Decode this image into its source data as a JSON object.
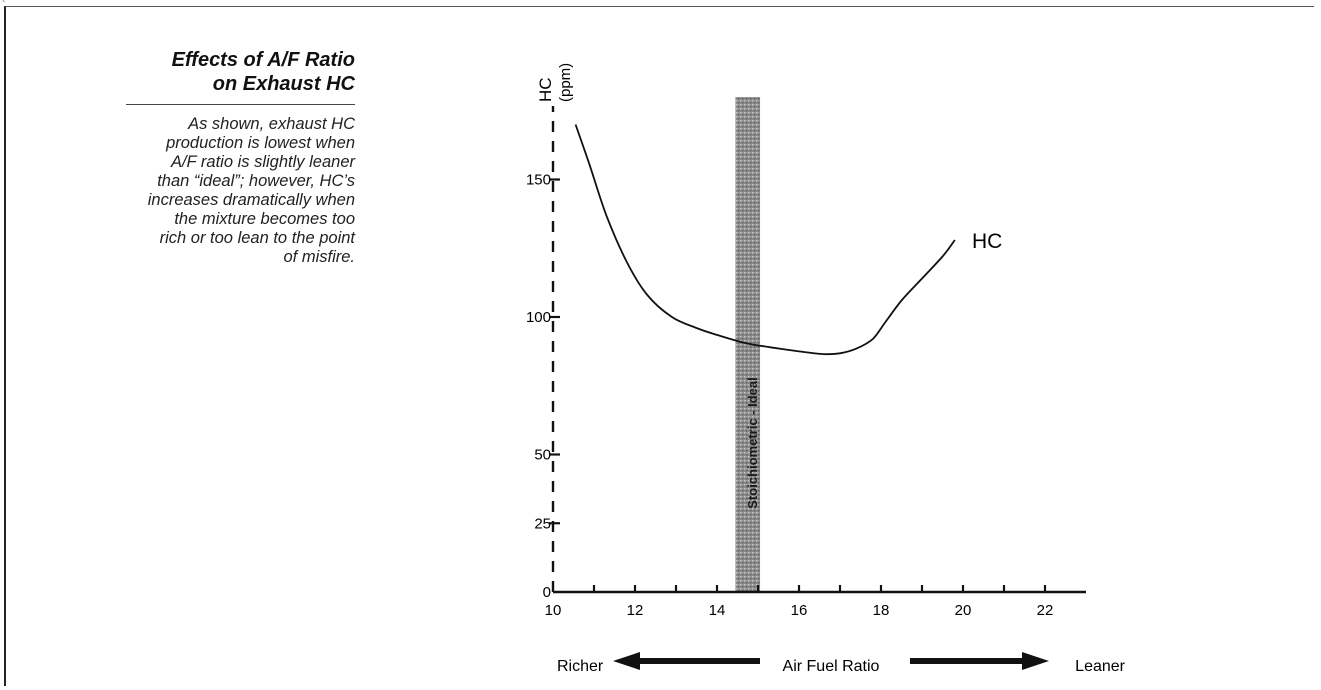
{
  "sidebar": {
    "title_line1": "Effects of A/F Ratio",
    "title_line2": "on Exhaust HC",
    "body_lines": [
      "As shown, exhaust HC",
      "production is lowest when",
      "A/F ratio is slightly leaner",
      "than “ideal”; however, HC’s",
      "increases dramatically when",
      "the mixture becomes too",
      "rich or too lean to the point",
      "of misfire."
    ]
  },
  "chart_data": {
    "type": "line",
    "x_ticks": [
      10,
      12,
      14,
      16,
      18,
      20,
      22
    ],
    "xlim": [
      10,
      23
    ],
    "y_ticks": [
      0,
      25,
      50,
      100,
      150
    ],
    "ylim": [
      0,
      180
    ],
    "ylabel_main": "HC",
    "ylabel_unit": "(ppm)",
    "xlabel": "Air Fuel Ratio",
    "xlabel_left": "Richer",
    "xlabel_right": "Leaner",
    "band": {
      "x0": 14.45,
      "x1": 15.05,
      "label": "Stoichiometric - Ideal"
    },
    "series": [
      {
        "name": "HC",
        "x": [
          10.55,
          10.9,
          11.3,
          11.8,
          12.3,
          12.9,
          13.5,
          14.0,
          14.7,
          15.3,
          16.0,
          16.6,
          17.0,
          17.4,
          17.8,
          18.1,
          18.5,
          19.0,
          19.5,
          19.8
        ],
        "y": [
          170,
          155,
          137,
          120,
          108,
          100,
          96,
          93.5,
          90.5,
          89,
          87.5,
          86.5,
          86.8,
          88.5,
          92,
          98,
          106,
          114,
          122,
          128
        ]
      }
    ]
  }
}
